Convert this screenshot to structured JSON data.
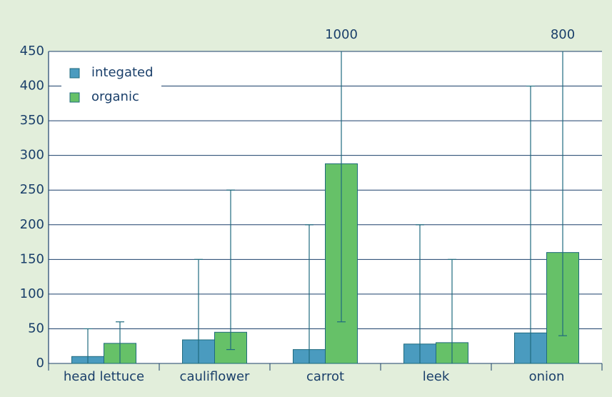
{
  "chart_data": {
    "type": "bar",
    "categories": [
      "head lettuce",
      "cauliflower",
      "carrot",
      "leek",
      "onion"
    ],
    "series": [
      {
        "name": "integated",
        "color": "#4a9bbf",
        "values": [
          10,
          34,
          20,
          28,
          44
        ],
        "low": [
          0,
          0,
          0,
          0,
          0
        ],
        "high": [
          50,
          150,
          200,
          200,
          400
        ]
      },
      {
        "name": "organic",
        "color": "#66c168",
        "values": [
          29,
          45,
          288,
          30,
          160
        ],
        "low": [
          0,
          20,
          60,
          0,
          40
        ],
        "high": [
          60,
          250,
          1000,
          150,
          800
        ]
      }
    ],
    "ylim": [
      0,
      450
    ],
    "yticks": [
      0,
      50,
      100,
      150,
      200,
      250,
      300,
      350,
      400,
      450
    ],
    "grid": true,
    "legend": "top-left"
  }
}
